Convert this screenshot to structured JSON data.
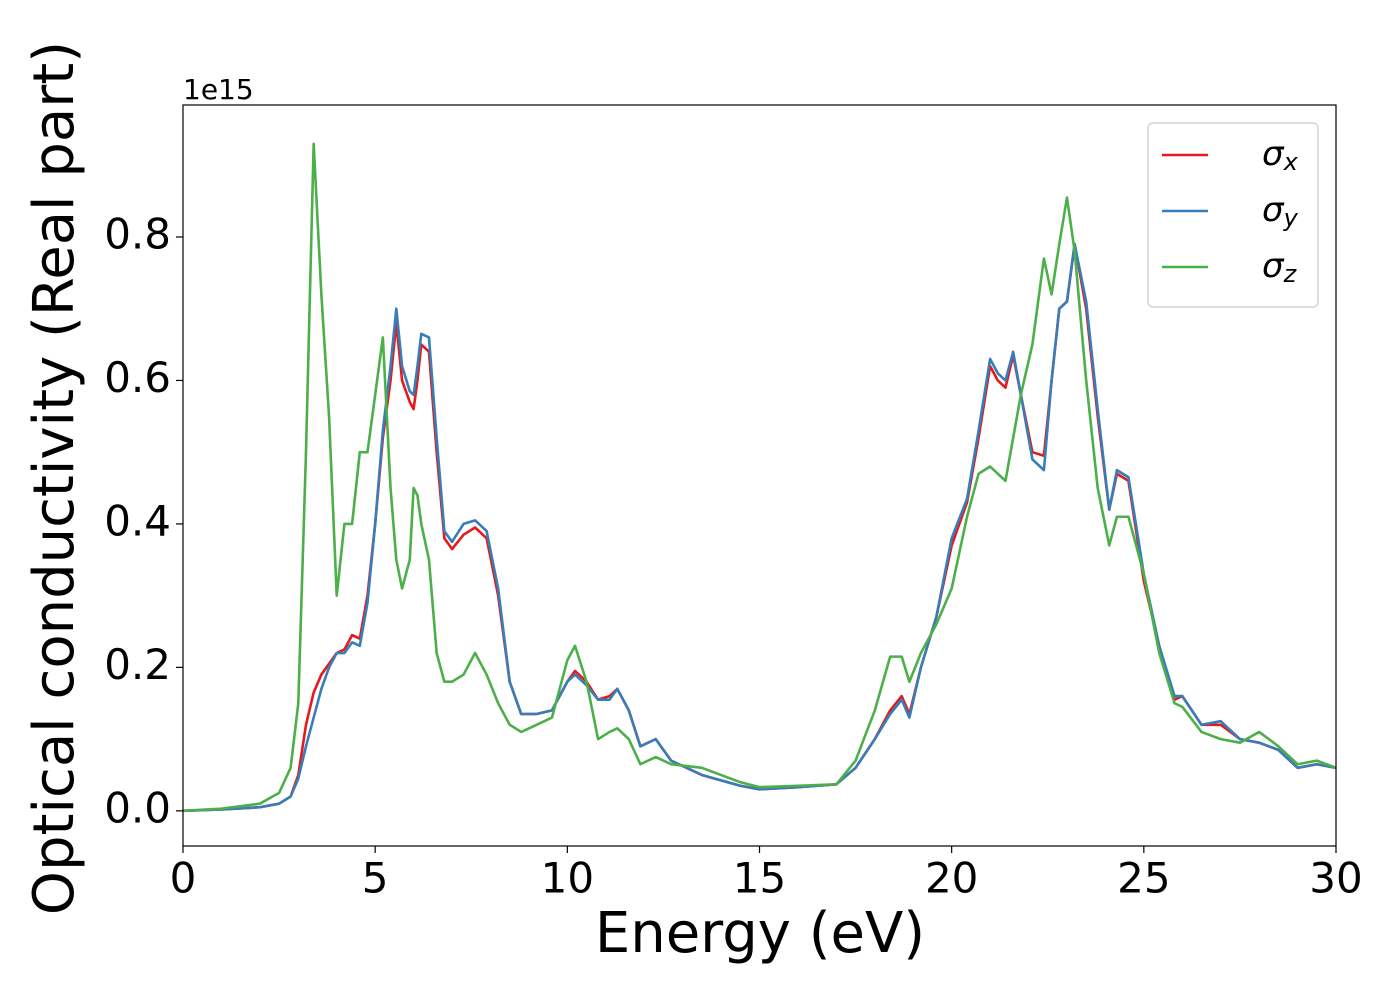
{
  "chart_data": {
    "type": "line",
    "xlabel": "Energy (eV)",
    "ylabel": "Optical conductivity (Real part)",
    "y_offset_label": "1e15",
    "x": [
      0,
      1,
      2,
      2.5,
      2.8,
      3.0,
      3.2,
      3.4,
      3.6,
      3.8,
      4.0,
      4.2,
      4.4,
      4.6,
      4.8,
      5.0,
      5.2,
      5.4,
      5.55,
      5.7,
      5.9,
      6.0,
      6.1,
      6.2,
      6.4,
      6.6,
      6.8,
      7.0,
      7.3,
      7.6,
      7.9,
      8.2,
      8.5,
      8.8,
      9.2,
      9.6,
      10.0,
      10.2,
      10.5,
      10.8,
      11.1,
      11.3,
      11.6,
      11.9,
      12.3,
      12.7,
      13.5,
      14.5,
      15.0,
      16.0,
      17.0,
      17.5,
      18.0,
      18.4,
      18.7,
      18.9,
      19.2,
      19.6,
      20.0,
      20.4,
      20.7,
      21.0,
      21.2,
      21.4,
      21.6,
      21.8,
      22.1,
      22.4,
      22.6,
      22.8,
      23.0,
      23.2,
      23.5,
      23.8,
      24.1,
      24.3,
      24.6,
      25.0,
      25.4,
      25.8,
      26.0,
      26.5,
      27.0,
      27.5,
      28.0,
      28.5,
      29.0,
      29.5,
      30.0
    ],
    "series": [
      {
        "name": "σx",
        "color": "#e41a1c",
        "values": [
          0,
          0.002,
          0.005,
          0.01,
          0.02,
          0.05,
          0.12,
          0.165,
          0.19,
          0.205,
          0.22,
          0.225,
          0.245,
          0.24,
          0.3,
          0.4,
          0.52,
          0.6,
          0.68,
          0.6,
          0.57,
          0.56,
          0.6,
          0.65,
          0.64,
          0.5,
          0.38,
          0.365,
          0.385,
          0.395,
          0.38,
          0.3,
          0.18,
          0.135,
          0.135,
          0.14,
          0.18,
          0.195,
          0.18,
          0.155,
          0.16,
          0.17,
          0.14,
          0.09,
          0.1,
          0.07,
          0.05,
          0.035,
          0.03,
          0.033,
          0.037,
          0.06,
          0.1,
          0.14,
          0.16,
          0.135,
          0.2,
          0.27,
          0.37,
          0.43,
          0.52,
          0.62,
          0.6,
          0.59,
          0.635,
          0.58,
          0.5,
          0.495,
          0.6,
          0.7,
          0.71,
          0.79,
          0.7,
          0.55,
          0.42,
          0.47,
          0.46,
          0.32,
          0.23,
          0.155,
          0.16,
          0.12,
          0.12,
          0.1,
          0.095,
          0.085,
          0.06,
          0.065,
          0.06
        ]
      },
      {
        "name": "σy",
        "color": "#377eb8",
        "values": [
          0,
          0.002,
          0.005,
          0.01,
          0.02,
          0.045,
          0.09,
          0.13,
          0.17,
          0.2,
          0.22,
          0.22,
          0.235,
          0.23,
          0.29,
          0.4,
          0.53,
          0.62,
          0.7,
          0.62,
          0.585,
          0.58,
          0.62,
          0.665,
          0.66,
          0.52,
          0.39,
          0.375,
          0.4,
          0.405,
          0.39,
          0.31,
          0.18,
          0.135,
          0.135,
          0.14,
          0.18,
          0.19,
          0.175,
          0.155,
          0.155,
          0.17,
          0.14,
          0.09,
          0.1,
          0.07,
          0.05,
          0.035,
          0.03,
          0.033,
          0.037,
          0.06,
          0.1,
          0.135,
          0.155,
          0.13,
          0.2,
          0.27,
          0.38,
          0.435,
          0.53,
          0.63,
          0.61,
          0.6,
          0.64,
          0.58,
          0.49,
          0.475,
          0.6,
          0.7,
          0.71,
          0.79,
          0.71,
          0.56,
          0.42,
          0.475,
          0.465,
          0.33,
          0.23,
          0.16,
          0.16,
          0.12,
          0.125,
          0.1,
          0.095,
          0.085,
          0.06,
          0.065,
          0.06
        ]
      },
      {
        "name": "σz",
        "color": "#4daf4a",
        "values": [
          0,
          0.003,
          0.01,
          0.025,
          0.06,
          0.15,
          0.5,
          0.93,
          0.72,
          0.55,
          0.3,
          0.4,
          0.4,
          0.5,
          0.5,
          0.58,
          0.66,
          0.45,
          0.35,
          0.31,
          0.35,
          0.45,
          0.44,
          0.4,
          0.35,
          0.22,
          0.18,
          0.18,
          0.19,
          0.22,
          0.19,
          0.15,
          0.12,
          0.11,
          0.12,
          0.13,
          0.21,
          0.23,
          0.18,
          0.1,
          0.11,
          0.115,
          0.1,
          0.065,
          0.075,
          0.065,
          0.06,
          0.04,
          0.033,
          0.035,
          0.037,
          0.07,
          0.14,
          0.215,
          0.215,
          0.18,
          0.22,
          0.26,
          0.31,
          0.41,
          0.47,
          0.48,
          0.47,
          0.46,
          0.52,
          0.58,
          0.65,
          0.77,
          0.72,
          0.79,
          0.855,
          0.78,
          0.6,
          0.45,
          0.37,
          0.41,
          0.41,
          0.33,
          0.22,
          0.15,
          0.145,
          0.11,
          0.1,
          0.095,
          0.11,
          0.09,
          0.065,
          0.07,
          0.06
        ]
      }
    ],
    "xlim": [
      0,
      30
    ],
    "xticks": [
      0,
      5,
      10,
      15,
      20,
      25,
      30
    ],
    "ylim": [
      -0.049,
      0.984
    ],
    "yticks": [
      {
        "value": 0,
        "label": "0.0"
      },
      0.2,
      0.4,
      0.6,
      0.8
    ],
    "grid": false,
    "legend": "upper right"
  }
}
